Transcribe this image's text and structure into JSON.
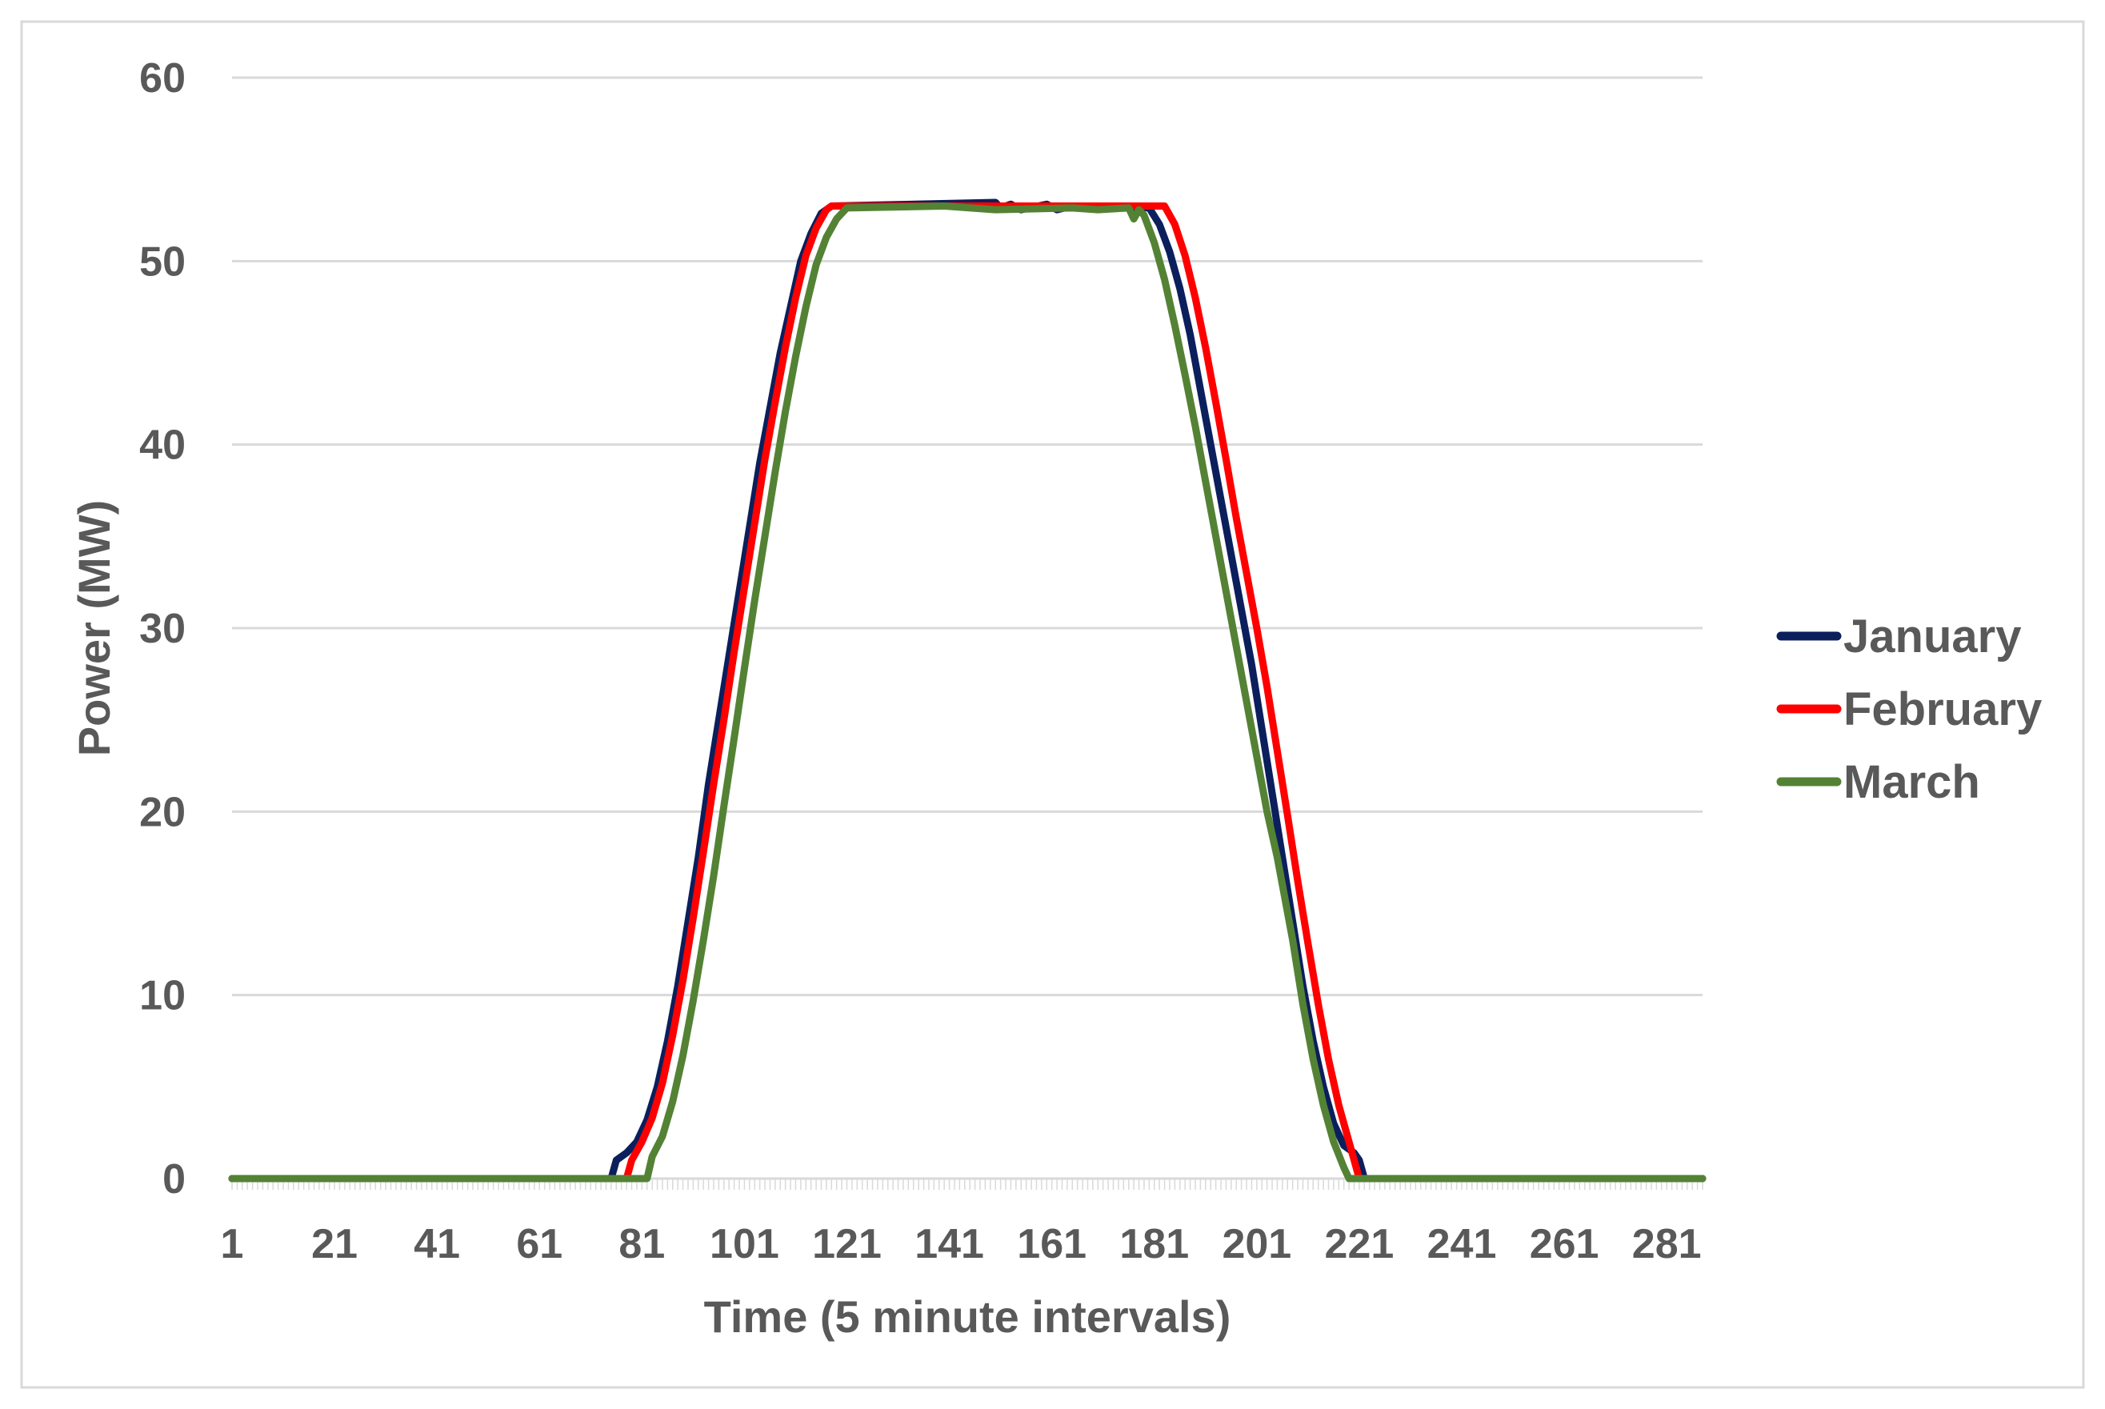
{
  "chart_data": {
    "type": "line",
    "title": "",
    "xlabel": "Time (5 minute intervals)",
    "ylabel": "Power (MW)",
    "xlim": [
      1,
      288
    ],
    "ylim": [
      0,
      60
    ],
    "x_tick_labels": [
      "1",
      "21",
      "41",
      "61",
      "81",
      "101",
      "121",
      "141",
      "161",
      "181",
      "201",
      "221",
      "241",
      "261",
      "281"
    ],
    "y_tick_labels": [
      "0",
      "10",
      "20",
      "30",
      "40",
      "50",
      "60"
    ],
    "grid": "horizontal",
    "legend_position": "right",
    "series": [
      {
        "name": "January",
        "color": "#0b1f5c",
        "points": [
          [
            1,
            0
          ],
          [
            75,
            0
          ],
          [
            76,
            1
          ],
          [
            78,
            1.4
          ],
          [
            80,
            2
          ],
          [
            82,
            3.2
          ],
          [
            84,
            5
          ],
          [
            86,
            7.5
          ],
          [
            88,
            10.5
          ],
          [
            90,
            14
          ],
          [
            92,
            17.5
          ],
          [
            94,
            21.5
          ],
          [
            96,
            25
          ],
          [
            98,
            28.5
          ],
          [
            100,
            32
          ],
          [
            102,
            35.5
          ],
          [
            104,
            39
          ],
          [
            106,
            42
          ],
          [
            108,
            45
          ],
          [
            110,
            47.5
          ],
          [
            112,
            50
          ],
          [
            114,
            51.5
          ],
          [
            116,
            52.6
          ],
          [
            118,
            53
          ],
          [
            150,
            53.2
          ],
          [
            151,
            52.9
          ],
          [
            153,
            53.1
          ],
          [
            155,
            52.8
          ],
          [
            160,
            53.1
          ],
          [
            162,
            52.8
          ],
          [
            165,
            53
          ],
          [
            180,
            52.9
          ],
          [
            182,
            52
          ],
          [
            184,
            50.5
          ],
          [
            186,
            48.5
          ],
          [
            188,
            46
          ],
          [
            190,
            43
          ],
          [
            192,
            40
          ],
          [
            194,
            37
          ],
          [
            196,
            34
          ],
          [
            198,
            31
          ],
          [
            200,
            28
          ],
          [
            202,
            24.5
          ],
          [
            204,
            21
          ],
          [
            206,
            17.5
          ],
          [
            208,
            14
          ],
          [
            210,
            10.5
          ],
          [
            212,
            7.5
          ],
          [
            214,
            5
          ],
          [
            216,
            3
          ],
          [
            218,
            1.8
          ],
          [
            220,
            1.4
          ],
          [
            221,
            1
          ],
          [
            222,
            0
          ],
          [
            288,
            0
          ]
        ]
      },
      {
        "name": "February",
        "color": "#ff0000",
        "points": [
          [
            1,
            0
          ],
          [
            78,
            0
          ],
          [
            79,
            1
          ],
          [
            81,
            2
          ],
          [
            83,
            3.3
          ],
          [
            85,
            5.2
          ],
          [
            87,
            7.8
          ],
          [
            89,
            10.8
          ],
          [
            91,
            14.2
          ],
          [
            93,
            17.8
          ],
          [
            95,
            21.5
          ],
          [
            97,
            25
          ],
          [
            99,
            28.7
          ],
          [
            101,
            32.2
          ],
          [
            103,
            35.7
          ],
          [
            105,
            39.2
          ],
          [
            107,
            42.3
          ],
          [
            109,
            45.3
          ],
          [
            111,
            48
          ],
          [
            113,
            50.3
          ],
          [
            115,
            51.8
          ],
          [
            117,
            52.8
          ],
          [
            118,
            53
          ],
          [
            183,
            53
          ],
          [
            185,
            52
          ],
          [
            187,
            50.3
          ],
          [
            189,
            48
          ],
          [
            191,
            45.3
          ],
          [
            193,
            42.3
          ],
          [
            195,
            39.2
          ],
          [
            197,
            36
          ],
          [
            199,
            33
          ],
          [
            201,
            30
          ],
          [
            203,
            26.8
          ],
          [
            205,
            23.3
          ],
          [
            207,
            19.8
          ],
          [
            209,
            16.2
          ],
          [
            211,
            12.8
          ],
          [
            213,
            9.5
          ],
          [
            215,
            6.5
          ],
          [
            217,
            4
          ],
          [
            219,
            2
          ],
          [
            220,
            1
          ],
          [
            221,
            0
          ],
          [
            288,
            0
          ]
        ]
      },
      {
        "name": "March",
        "color": "#548235",
        "points": [
          [
            1,
            0
          ],
          [
            82,
            0
          ],
          [
            83,
            1.2
          ],
          [
            85,
            2.3
          ],
          [
            87,
            4.2
          ],
          [
            89,
            6.7
          ],
          [
            91,
            9.7
          ],
          [
            93,
            13
          ],
          [
            95,
            16.5
          ],
          [
            97,
            20.3
          ],
          [
            99,
            24
          ],
          [
            101,
            27.8
          ],
          [
            103,
            31.5
          ],
          [
            105,
            35
          ],
          [
            107,
            38.5
          ],
          [
            109,
            41.8
          ],
          [
            111,
            44.8
          ],
          [
            113,
            47.5
          ],
          [
            115,
            49.8
          ],
          [
            117,
            51.3
          ],
          [
            119,
            52.3
          ],
          [
            121,
            52.9
          ],
          [
            140,
            53
          ],
          [
            150,
            52.8
          ],
          [
            165,
            52.9
          ],
          [
            170,
            52.8
          ],
          [
            176,
            52.9
          ],
          [
            177,
            52.3
          ],
          [
            178,
            52.8
          ],
          [
            179,
            52.5
          ],
          [
            181,
            51
          ],
          [
            183,
            49
          ],
          [
            185,
            46.5
          ],
          [
            187,
            43.8
          ],
          [
            189,
            41
          ],
          [
            191,
            38
          ],
          [
            193,
            35
          ],
          [
            195,
            32
          ],
          [
            197,
            29
          ],
          [
            199,
            26
          ],
          [
            201,
            23
          ],
          [
            203,
            20
          ],
          [
            205,
            17.5
          ],
          [
            206,
            16
          ],
          [
            208,
            13
          ],
          [
            210,
            9.5
          ],
          [
            212,
            6.5
          ],
          [
            214,
            4
          ],
          [
            216,
            2
          ],
          [
            218,
            0.6
          ],
          [
            219,
            0
          ],
          [
            288,
            0
          ]
        ]
      }
    ]
  }
}
